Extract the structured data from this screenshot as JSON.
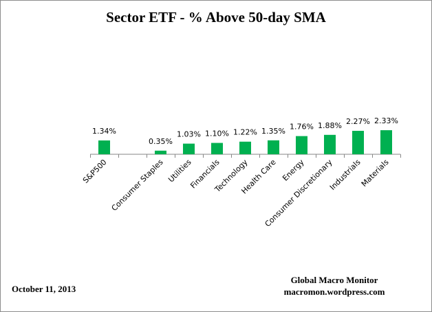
{
  "chart_data": {
    "type": "bar",
    "title": "Sector ETF - % Above 50-day SMA",
    "categories": [
      "S&P500",
      "",
      "Consumer Staples",
      "Utilities",
      "Financials",
      "Technology",
      "Health Care",
      "Energy",
      "Consumer Discretionary",
      "Industrials",
      "Materials"
    ],
    "values": [
      1.34,
      null,
      0.35,
      1.03,
      1.1,
      1.22,
      1.35,
      1.76,
      1.88,
      2.27,
      2.33
    ],
    "data_labels": [
      "1.34%",
      "",
      "0.35%",
      "1.03%",
      "1.10%",
      "1.22%",
      "1.35%",
      "1.76%",
      "1.88%",
      "2.27%",
      "2.33%"
    ],
    "xlabel": "",
    "ylabel": "",
    "ylim": [
      0,
      10
    ],
    "grid": false,
    "bar_color": "#00b050"
  },
  "footer": {
    "date": "October 11, 2013",
    "source_name": "Global Macro Monitor",
    "source_url": "macromon.wordpress.com"
  }
}
